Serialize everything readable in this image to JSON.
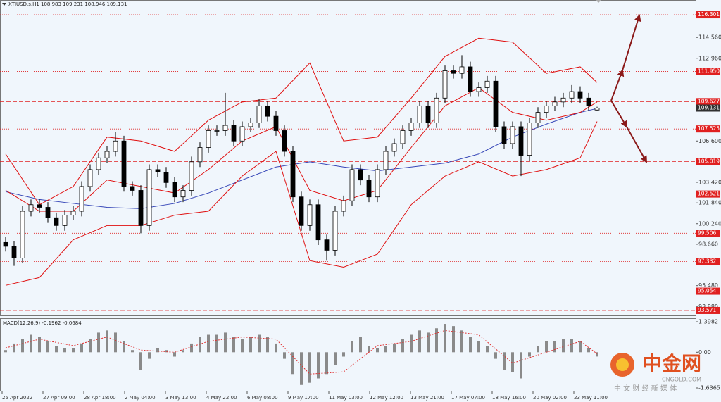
{
  "chart_data": {
    "type": "candlestick",
    "title": "XTIUSD.s,H1  108.983 109.231 108.946 109.131",
    "open": [
      98.8,
      98.5,
      97.6,
      101.2,
      101.7,
      101.5,
      100.7,
      100.1,
      100.9,
      101.2,
      103.1,
      104.4,
      105.3,
      105.8,
      106.6,
      103.1,
      102.8,
      100.1,
      104.4,
      104.2,
      103.4,
      102.3,
      102.8,
      105.0,
      106.1,
      107.4,
      107.4,
      107.8,
      106.6,
      107.7,
      108.0,
      109.3,
      108.5,
      107.4,
      105.8,
      102.3,
      100.1,
      101.7,
      99.0,
      98.2,
      101.2,
      102.0,
      104.4,
      103.6,
      102.3,
      104.4,
      105.8,
      106.4,
      107.4,
      108.0,
      109.3,
      108.0,
      109.9,
      112.0,
      111.8,
      112.3,
      110.4,
      110.7,
      111.2,
      107.7,
      106.4,
      107.7,
      105.5,
      108.0,
      108.8,
      109.3,
      109.6,
      109.9,
      110.4,
      109.9,
      108.983
    ],
    "high": [
      99.2,
      98.9,
      101.6,
      102.1,
      102.1,
      101.9,
      101.1,
      101.3,
      101.6,
      103.5,
      104.8,
      105.7,
      106.2,
      107.3,
      107.0,
      103.5,
      103.2,
      104.8,
      104.8,
      104.6,
      103.8,
      103.2,
      105.4,
      106.5,
      107.8,
      107.8,
      110.3,
      108.2,
      108.1,
      108.4,
      109.8,
      109.7,
      108.9,
      107.8,
      106.2,
      102.7,
      102.1,
      102.1,
      99.4,
      101.6,
      102.4,
      104.8,
      104.8,
      104.0,
      104.8,
      106.2,
      106.8,
      107.8,
      108.4,
      109.7,
      109.7,
      110.3,
      112.4,
      112.4,
      113.2,
      112.7,
      111.1,
      111.6,
      111.6,
      108.1,
      108.1,
      108.1,
      108.4,
      109.2,
      109.7,
      110.0,
      110.3,
      110.9,
      110.8,
      110.3,
      109.231
    ],
    "low": [
      98.1,
      97.0,
      97.2,
      100.8,
      101.1,
      100.3,
      99.7,
      99.7,
      100.5,
      100.8,
      102.7,
      104.0,
      104.9,
      105.4,
      102.7,
      102.4,
      99.5,
      99.7,
      103.8,
      103.0,
      101.9,
      101.9,
      102.4,
      104.6,
      105.7,
      107.0,
      107.0,
      106.2,
      106.2,
      107.3,
      107.6,
      108.1,
      107.0,
      105.4,
      101.9,
      99.7,
      99.7,
      98.6,
      97.4,
      97.8,
      100.8,
      101.6,
      103.2,
      101.9,
      101.9,
      104.0,
      105.4,
      106.0,
      107.0,
      107.6,
      107.6,
      107.6,
      109.5,
      111.4,
      111.4,
      110.0,
      110.0,
      110.3,
      107.3,
      106.0,
      106.0,
      103.9,
      105.1,
      107.6,
      108.4,
      108.9,
      109.2,
      109.5,
      109.5,
      108.9,
      108.946
    ],
    "close": [
      98.5,
      97.6,
      101.2,
      101.7,
      101.5,
      100.7,
      100.1,
      100.9,
      101.2,
      103.1,
      104.4,
      105.3,
      105.8,
      106.6,
      103.1,
      102.8,
      100.1,
      104.4,
      104.2,
      103.4,
      102.3,
      102.8,
      105.0,
      106.1,
      107.4,
      107.4,
      107.8,
      106.6,
      107.7,
      108.0,
      109.3,
      108.5,
      107.4,
      105.8,
      102.3,
      100.1,
      101.7,
      99.0,
      98.2,
      101.2,
      102.0,
      104.4,
      103.6,
      102.3,
      104.4,
      105.8,
      106.4,
      107.4,
      108.0,
      109.3,
      108.0,
      109.9,
      112.0,
      111.8,
      112.3,
      110.4,
      110.7,
      111.2,
      107.7,
      106.4,
      107.7,
      105.5,
      108.0,
      108.8,
      109.3,
      109.6,
      109.9,
      110.4,
      109.9,
      109.3,
      109.131
    ],
    "up_color": "#ffffff",
    "down_color": "#000000",
    "ylim": [
      93.19,
      117.44
    ],
    "yticks": [
      {
        "value": 114.56,
        "label": "114.560"
      },
      {
        "value": 112.96,
        "label": "112.960"
      },
      {
        "value": 106.6,
        "label": "106.600"
      },
      {
        "value": 103.42,
        "label": "103.420"
      },
      {
        "value": 101.84,
        "label": "101.840"
      },
      {
        "value": 100.24,
        "label": "100.240"
      },
      {
        "value": 98.66,
        "label": "98.660"
      },
      {
        "value": 95.48,
        "label": "95.480"
      },
      {
        "value": 93.88,
        "label": "93.880"
      }
    ],
    "levels": [
      {
        "value": 116.301,
        "style": "dotted"
      },
      {
        "value": 111.95,
        "label": "111.950",
        "style": "dotted"
      },
      {
        "value": 109.627,
        "style": "dashed"
      },
      {
        "value": 107.525,
        "style": "dotted"
      },
      {
        "value": 105.019,
        "style": "dashed"
      },
      {
        "value": 102.521,
        "style": "dotted"
      },
      {
        "value": 99.506,
        "style": "dotted"
      },
      {
        "value": 97.332,
        "style": "dotted"
      },
      {
        "value": 95.054,
        "style": "dashed"
      },
      {
        "value": 93.571,
        "style": "dashed"
      }
    ],
    "level_color": "#e02020",
    "current_price": 109.131,
    "bands": {
      "color": "#e01010",
      "x": [
        0,
        4,
        8,
        12,
        16,
        20,
        24,
        28,
        32,
        36,
        40,
        44,
        48,
        52,
        56,
        60,
        64,
        68,
        70
      ],
      "upper": [
        105.6,
        101.7,
        103.1,
        106.9,
        106.6,
        105.8,
        108.2,
        109.6,
        109.9,
        112.6,
        106.6,
        106.9,
        109.9,
        113.1,
        114.5,
        114.2,
        111.8,
        112.3,
        111.1
      ],
      "middle": [
        102.8,
        101.2,
        101.2,
        103.6,
        103.1,
        102.6,
        104.4,
        106.6,
        107.7,
        102.8,
        102.0,
        102.8,
        106.1,
        109.3,
        110.7,
        108.8,
        108.2,
        108.8,
        109.6
      ],
      "lower": [
        95.5,
        96.1,
        99.0,
        100.1,
        100.1,
        100.9,
        101.2,
        103.9,
        105.8,
        97.4,
        96.9,
        97.9,
        101.7,
        103.9,
        105.0,
        103.9,
        104.4,
        105.3,
        108.1
      ]
    },
    "ma": {
      "color": "#3848b8",
      "values": [
        102.7,
        102.1,
        101.8,
        101.5,
        101.4,
        101.8,
        102.6,
        103.6,
        104.6,
        105.0,
        104.6,
        104.3,
        104.6,
        104.9,
        105.6,
        106.9,
        107.9,
        108.8,
        109.1
      ]
    },
    "x_labels": [
      "25 Apr 2022",
      "27 Apr 09:00",
      "28 Apr 18:00",
      "2 May 04:00",
      "3 May 13:00",
      "4 May 22:00",
      "6 May 08:00",
      "9 May 17:00",
      "11 May 03:00",
      "12 May 12:00",
      "13 May 21:00",
      "17 May 07:00",
      "18 May 16:00",
      "20 May 02:00",
      "23 May 11:00"
    ],
    "macd": {
      "title": "MACD(12,26,9) -0.1962 -0.0684",
      "histogram": [
        0.1,
        0.4,
        0.6,
        0.8,
        0.7,
        0.5,
        0.3,
        0.2,
        0.2,
        0.4,
        0.6,
        0.9,
        1.0,
        0.9,
        0.5,
        0.1,
        -0.8,
        -0.3,
        0.2,
        0.1,
        -0.2,
        0.1,
        0.4,
        0.7,
        0.8,
        0.8,
        0.9,
        0.7,
        0.6,
        0.7,
        0.8,
        0.7,
        0.4,
        -0.3,
        -1.0,
        -1.5,
        -1.4,
        -1.2,
        -1.0,
        -0.6,
        -0.2,
        0.5,
        0.7,
        0.3,
        0.2,
        0.3,
        0.4,
        0.6,
        0.8,
        1.0,
        0.9,
        1.1,
        1.3,
        1.2,
        1.0,
        0.7,
        0.5,
        0.3,
        -0.3,
        -0.8,
        -0.9,
        -1.2,
        -0.2,
        0.3,
        0.5,
        0.5,
        0.6,
        0.6,
        0.5,
        0.2,
        -0.1962
      ],
      "signal": [
        0.2,
        0.6,
        0.3,
        0.7,
        0.1,
        0.0,
        0.5,
        0.7,
        0.6,
        -1.0,
        -0.9,
        0.3,
        0.5,
        1.0,
        0.8,
        -0.5,
        0.0,
        0.5,
        -0.0684
      ],
      "hist_color": "#8a8a8a",
      "signal_color": "#e03030",
      "ylim": [
        -1.6365,
        1.3982
      ],
      "yticks": [
        1.3982,
        {
          "value": 0,
          "label": "0.00"
        },
        -1.6365
      ]
    }
  },
  "watermark": {
    "brand": "中金网",
    "site": "CNGOLD.COM",
    "slogan": "中 文 财 经 新 媒 体"
  }
}
